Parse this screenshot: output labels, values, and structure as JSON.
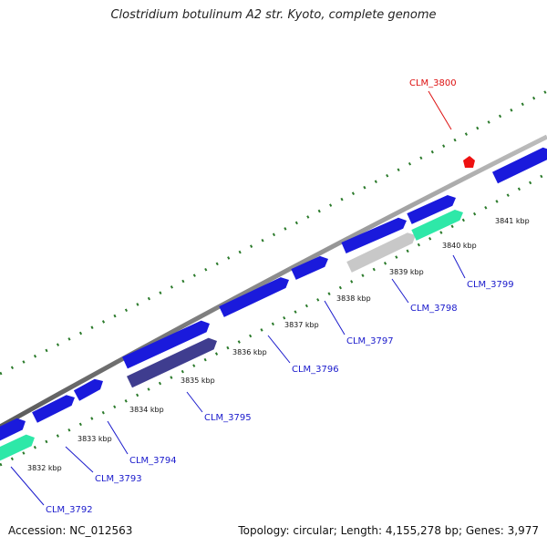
{
  "title": "Clostridium botulinum A2 str. Kyoto, complete genome",
  "footer": {
    "accession": "Accession: NC_012563",
    "summary": "Topology: circular; Length: 4,155,278 bp; Genes: 3,977"
  },
  "colors": {
    "backbone": "#8c8c8c",
    "gene_forward": "#1a1adc",
    "gene_reverse_cds": "#3f3d8f",
    "gene_rna": "#2ee8a8",
    "gene_pseudo": "#c8c8c8",
    "tick": "#2a7a2a",
    "label_gene": "#1a1acc",
    "label_highlight": "#dd1111",
    "marker": "#ee1111"
  },
  "kbp_ticks": [
    "3832 kbp",
    "3833 kbp",
    "3834 kbp",
    "3835 kbp",
    "3836 kbp",
    "3837 kbp",
    "3838 kbp",
    "3839 kbp",
    "3840 kbp",
    "3841 kbp"
  ],
  "gene_labels": [
    {
      "name": "CLM_3792",
      "color": "label_gene"
    },
    {
      "name": "CLM_3793",
      "color": "label_gene"
    },
    {
      "name": "CLM_3794",
      "color": "label_gene"
    },
    {
      "name": "CLM_3795",
      "color": "label_gene"
    },
    {
      "name": "CLM_3796",
      "color": "label_gene"
    },
    {
      "name": "CLM_3797",
      "color": "label_gene"
    },
    {
      "name": "CLM_3798",
      "color": "label_gene"
    },
    {
      "name": "CLM_3799",
      "color": "label_gene"
    },
    {
      "name": "CLM_3800",
      "color": "label_highlight"
    }
  ]
}
